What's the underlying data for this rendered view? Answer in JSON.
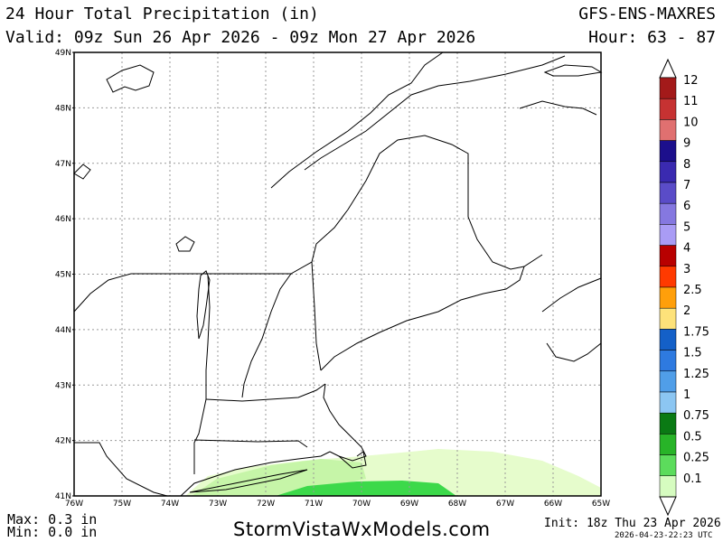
{
  "header": {
    "title": "24 Hour Total Precipitation (in)",
    "model": "GFS-ENS-MAXRES",
    "valid": "Valid: 09z Sun 26 Apr 2026 - 09z Mon 27 Apr 2026",
    "hours": "Hour: 63 - 87"
  },
  "map": {
    "lat_labels": [
      "49N",
      "48N",
      "47N",
      "46N",
      "45N",
      "44N",
      "43N",
      "42N",
      "41N"
    ],
    "lon_labels": [
      "76W",
      "75W",
      "74W",
      "73W",
      "72W",
      "71W",
      "70W",
      "69W",
      "68W",
      "67W",
      "66W",
      "65W"
    ],
    "colors": {
      "light_green": "#e6fccc",
      "mid_green": "#c6f5a8",
      "bright_green": "#3cd94a",
      "coast": "#000000",
      "grid": "#999999"
    }
  },
  "legend": {
    "labels": [
      "12",
      "11",
      "10",
      "9",
      "8",
      "7",
      "6",
      "5",
      "4",
      "3",
      "2.5",
      "2",
      "1.75",
      "1.5",
      "1.25",
      "1",
      "0.75",
      "0.5",
      "0.25",
      "0.1"
    ],
    "colors": [
      "#a31a1a",
      "#c63232",
      "#e07070",
      "#1c0f8c",
      "#3a2ab0",
      "#5a4cc8",
      "#8578e0",
      "#a99cf5",
      "#b80000",
      "#ff3a00",
      "#ff9f0a",
      "#fde27a",
      "#1460c8",
      "#2e7ae0",
      "#509ee8",
      "#8cc6f2",
      "#0a7a14",
      "#28b428",
      "#5cdc5c",
      "#d6fcc0"
    ]
  },
  "footer": {
    "max": "Max: 0.3 in",
    "min": "Min: 0.0 in",
    "site": "StormVistaWxModels.com",
    "init": "Init: 18z Thu 23 Apr 2026",
    "stamp": "2026-04-23-22:23 UTC"
  }
}
